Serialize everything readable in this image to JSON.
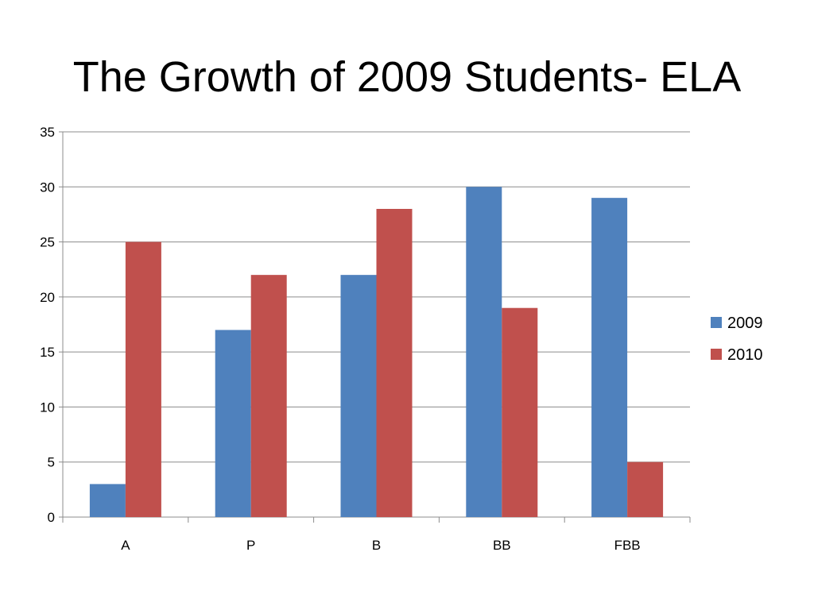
{
  "slide": {
    "title": "The Growth of 2009 Students- ELA"
  },
  "chart_data": {
    "type": "bar",
    "title": "The Growth of 2009 Students- ELA",
    "xlabel": "",
    "ylabel": "",
    "categories": [
      "A",
      "P",
      "B",
      "BB",
      "FBB"
    ],
    "series": [
      {
        "name": "2009",
        "values": [
          3,
          17,
          22,
          30,
          29
        ],
        "color": "#4F81BD"
      },
      {
        "name": "2010",
        "values": [
          25,
          22,
          28,
          19,
          5
        ],
        "color": "#C0504D"
      }
    ],
    "ylim": [
      0,
      35
    ],
    "yticks": [
      0,
      5,
      10,
      15,
      20,
      25,
      30,
      35
    ],
    "grid": true,
    "legend_position": "right"
  }
}
